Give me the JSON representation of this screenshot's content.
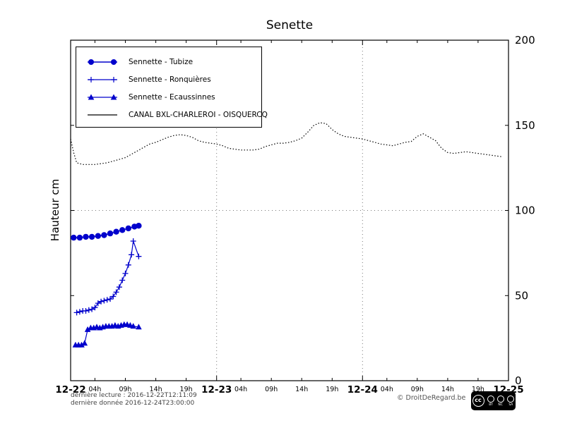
{
  "title": "Senette",
  "ylabel": "Hauteur cm",
  "footer": {
    "last_reading": "dernière lecture : 2016-12-22T12:11:09",
    "last_data": "dernière donnée  2016-12-24T23:00:00",
    "copyright": "© DroitDeRegard.be"
  },
  "cc_badge": {
    "cc": "cc",
    "items": [
      "BY",
      "NC",
      "SA"
    ]
  },
  "chart_data": {
    "type": "line",
    "title": "Senette",
    "ylabel": "Hauteur cm",
    "ylim": [
      0,
      200
    ],
    "yticks": [
      0,
      50,
      100,
      150,
      200
    ],
    "x_unit": "hours since 2016-12-22 00:00",
    "xlim_hours": [
      0,
      72
    ],
    "x_major_ticks": [
      {
        "hour": 0,
        "label": "12-22"
      },
      {
        "hour": 24,
        "label": "12-23"
      },
      {
        "hour": 48,
        "label": "12-24"
      },
      {
        "hour": 72,
        "label": "12-25"
      }
    ],
    "x_minor_ticks": [
      {
        "hour": 4,
        "label": "04h"
      },
      {
        "hour": 9,
        "label": "09h"
      },
      {
        "hour": 14,
        "label": "14h"
      },
      {
        "hour": 19,
        "label": "19h"
      },
      {
        "hour": 28,
        "label": "04h"
      },
      {
        "hour": 33,
        "label": "09h"
      },
      {
        "hour": 38,
        "label": "14h"
      },
      {
        "hour": 43,
        "label": "19h"
      },
      {
        "hour": 52,
        "label": "04h"
      },
      {
        "hour": 57,
        "label": "09h"
      },
      {
        "hour": 62,
        "label": "14h"
      },
      {
        "hour": 67,
        "label": "19h"
      }
    ],
    "grid": {
      "x_hours": [
        24,
        48
      ],
      "y_values": [
        100
      ]
    },
    "legend_position": "top-left",
    "series": [
      {
        "name": "Sennette - Tubize",
        "color": "#0000cc",
        "marker": "circle",
        "line_style": "solid",
        "line_width": 1.5,
        "x": [
          0.5,
          1.5,
          2.5,
          3.5,
          4.5,
          5.5,
          6.5,
          7.5,
          8.5,
          9.5,
          10.5,
          11.2
        ],
        "y": [
          84,
          84,
          84.5,
          84.5,
          85,
          85.5,
          86.5,
          87.5,
          88.5,
          89.5,
          90.5,
          91
        ]
      },
      {
        "name": "Sennette - Ronquières",
        "color": "#0000cc",
        "marker": "plus",
        "line_style": "solid",
        "line_width": 1.2,
        "x": [
          1,
          1.5,
          2,
          2.5,
          3,
          3.5,
          4,
          4.5,
          5,
          5.5,
          6,
          6.5,
          7,
          7.5,
          8,
          8.5,
          9,
          9.5,
          10,
          10.3,
          11.2
        ],
        "y": [
          40,
          40.5,
          41,
          41,
          41.5,
          42,
          43,
          45.5,
          46.5,
          47,
          47.5,
          48,
          49.5,
          52,
          55,
          59,
          63,
          68,
          74,
          82,
          73
        ]
      },
      {
        "name": "Sennette - Ecaussinnes",
        "color": "#0000cc",
        "marker": "triangle",
        "line_style": "solid",
        "line_width": 1.2,
        "x": [
          0.8,
          1.3,
          1.8,
          2.3,
          2.8,
          3.3,
          3.8,
          4.3,
          4.8,
          5.3,
          5.8,
          6.3,
          6.8,
          7.3,
          7.8,
          8.3,
          8.8,
          9.3,
          9.8,
          10.3,
          11.2
        ],
        "y": [
          21,
          21,
          21,
          22,
          30,
          31,
          31,
          31.5,
          31,
          31.5,
          32,
          32,
          32,
          32.5,
          32,
          32.5,
          33,
          33,
          32.5,
          32,
          31.5
        ]
      },
      {
        "name": "CANAL BXL-CHARLEROI - OISQUERCQ",
        "color": "#000000",
        "marker": "none",
        "line_style": "dotted",
        "line_width": 1.2,
        "x": [
          0,
          0.5,
          1,
          2,
          3,
          4,
          5,
          6,
          7,
          8,
          9,
          10,
          11,
          12,
          13,
          14,
          15,
          16,
          17,
          18,
          19,
          20,
          21,
          22,
          23,
          24,
          25,
          26,
          27,
          28,
          29,
          30,
          31,
          32,
          33,
          34,
          35,
          36,
          37,
          38,
          39,
          40,
          41,
          42,
          43,
          44,
          45,
          46,
          47,
          48,
          49,
          50,
          51,
          52,
          53,
          54,
          55,
          56,
          57,
          58,
          59,
          60,
          61,
          62,
          63,
          64,
          65,
          66,
          67,
          68,
          69,
          70,
          71
        ],
        "y": [
          142,
          134,
          128,
          127,
          127,
          127,
          127.5,
          128,
          129,
          130,
          131,
          133,
          135,
          137,
          139,
          140,
          141.5,
          143,
          144,
          144.5,
          144,
          143,
          141,
          140,
          139.5,
          139,
          138,
          136.5,
          136,
          135.5,
          135.5,
          135.5,
          136,
          137.5,
          138.5,
          139.5,
          139.5,
          140,
          141,
          142.5,
          146,
          150,
          151.5,
          151,
          147.5,
          145,
          143.5,
          143,
          142.5,
          142,
          141,
          140,
          139,
          138.5,
          138,
          139,
          140,
          140.5,
          143.5,
          145,
          143,
          141,
          136.5,
          134,
          133.5,
          134,
          134.5,
          134,
          133.5,
          133,
          132.5,
          132,
          131.5
        ]
      }
    ]
  }
}
